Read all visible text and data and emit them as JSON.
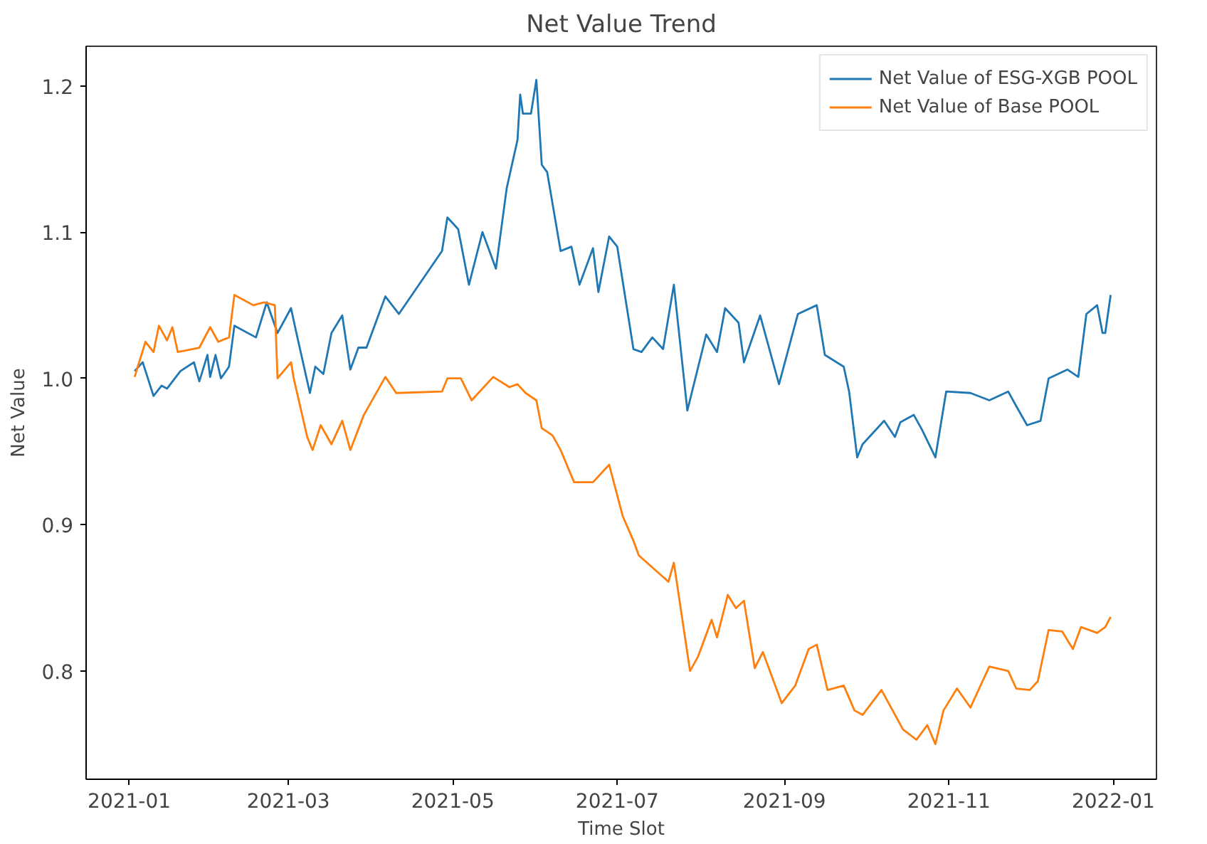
{
  "chart_data": {
    "type": "line",
    "title": "Net Value Trend",
    "xlabel": "Time Slot",
    "ylabel": "Net Value",
    "xlim": [
      "2020-12-16",
      "2022-01-17"
    ],
    "xticks": [
      "2021-01",
      "2021-03",
      "2021-05",
      "2021-07",
      "2021-09",
      "2021-11",
      "2022-01"
    ],
    "ylim": [
      0.726,
      1.227
    ],
    "yticks": [
      0.8,
      0.9,
      {
        "value": 1,
        "label": "1.0"
      },
      1.1,
      1.2
    ],
    "grid": false,
    "legend": "top right",
    "series": [
      {
        "name": "Net Value of ESG-XGB POOL",
        "color": "#1f77b4",
        "x": [
          "2021-01-03",
          "2021-01-06",
          "2021-01-10",
          "2021-01-13",
          "2021-01-15",
          "2021-01-20",
          "2021-01-25",
          "2021-01-27",
          "2021-01-30",
          "2021-01-31",
          "2021-02-02",
          "2021-02-04",
          "2021-02-07",
          "2021-02-09",
          "2021-02-17",
          "2021-02-21",
          "2021-02-25",
          "2021-03-02",
          "2021-03-04",
          "2021-03-09",
          "2021-03-11",
          "2021-03-14",
          "2021-03-17",
          "2021-03-21",
          "2021-03-24",
          "2021-03-27",
          "2021-03-30",
          "2021-04-06",
          "2021-04-11",
          "2021-04-27",
          "2021-04-29",
          "2021-05-03",
          "2021-05-07",
          "2021-05-12",
          "2021-05-17",
          "2021-05-21",
          "2021-05-25",
          "2021-05-26",
          "2021-05-27",
          "2021-05-30",
          "2021-06-01",
          "2021-06-03",
          "2021-06-05",
          "2021-06-10",
          "2021-06-14",
          "2021-06-17",
          "2021-06-22",
          "2021-06-24",
          "2021-06-28",
          "2021-07-01",
          "2021-07-07",
          "2021-07-10",
          "2021-07-14",
          "2021-07-18",
          "2021-07-22",
          "2021-07-27",
          "2021-08-03",
          "2021-08-07",
          "2021-08-10",
          "2021-08-15",
          "2021-08-17",
          "2021-08-23",
          "2021-08-30",
          "2021-09-06",
          "2021-09-13",
          "2021-09-16",
          "2021-09-23",
          "2021-09-25",
          "2021-09-28",
          "2021-09-30",
          "2021-10-08",
          "2021-10-12",
          "2021-10-14",
          "2021-10-19",
          "2021-10-22",
          "2021-10-27",
          "2021-10-31",
          "2021-11-09",
          "2021-11-16",
          "2021-11-23",
          "2021-11-26",
          "2021-11-30",
          "2021-12-05",
          "2021-12-08",
          "2021-12-15",
          "2021-12-19",
          "2021-12-22",
          "2021-12-26",
          "2021-12-28",
          "2021-12-29",
          "2021-12-31"
        ],
        "values": [
          1.005,
          1.011,
          0.988,
          0.995,
          0.993,
          1.005,
          1.011,
          0.998,
          1.016,
          1.001,
          1.016,
          1.0,
          1.008,
          1.036,
          1.028,
          1.052,
          1.031,
          1.048,
          1.031,
          0.99,
          1.008,
          1.003,
          1.031,
          1.043,
          1.006,
          1.021,
          1.021,
          1.056,
          1.044,
          1.087,
          1.11,
          1.102,
          1.064,
          1.1,
          1.075,
          1.13,
          1.163,
          1.194,
          1.181,
          1.181,
          1.204,
          1.146,
          1.141,
          1.087,
          1.09,
          1.064,
          1.089,
          1.059,
          1.097,
          1.09,
          1.02,
          1.018,
          1.028,
          1.02,
          1.064,
          0.978,
          1.03,
          1.018,
          1.048,
          1.038,
          1.011,
          1.043,
          0.996,
          1.044,
          1.05,
          1.016,
          1.008,
          0.991,
          0.946,
          0.955,
          0.971,
          0.96,
          0.97,
          0.975,
          0.965,
          0.946,
          0.991,
          0.99,
          0.985,
          0.991,
          0.981,
          0.968,
          0.971,
          1.0,
          1.006,
          1.001,
          1.044,
          1.05,
          1.031,
          1.031,
          1.057
        ]
      },
      {
        "name": "Net Value of Base POOL",
        "color": "#ff7f0e",
        "x": [
          "2021-01-03",
          "2021-01-07",
          "2021-01-10",
          "2021-01-12",
          "2021-01-15",
          "2021-01-17",
          "2021-01-19",
          "2021-01-27",
          "2021-01-31",
          "2021-02-03",
          "2021-02-07",
          "2021-02-09",
          "2021-02-16",
          "2021-02-20",
          "2021-02-24",
          "2021-02-25",
          "2021-03-02",
          "2021-03-03",
          "2021-03-08",
          "2021-03-10",
          "2021-03-13",
          "2021-03-17",
          "2021-03-21",
          "2021-03-24",
          "2021-03-29",
          "2021-04-02",
          "2021-04-06",
          "2021-04-10",
          "2021-04-27",
          "2021-04-29",
          "2021-05-04",
          "2021-05-08",
          "2021-05-16",
          "2021-05-22",
          "2021-05-25",
          "2021-05-28",
          "2021-06-01",
          "2021-06-03",
          "2021-06-07",
          "2021-06-10",
          "2021-06-15",
          "2021-06-22",
          "2021-06-28",
          "2021-07-03",
          "2021-07-07",
          "2021-07-09",
          "2021-07-20",
          "2021-07-22",
          "2021-07-28",
          "2021-07-31",
          "2021-08-05",
          "2021-08-07",
          "2021-08-11",
          "2021-08-14",
          "2021-08-17",
          "2021-08-21",
          "2021-08-24",
          "2021-08-31",
          "2021-09-05",
          "2021-09-10",
          "2021-09-13",
          "2021-09-17",
          "2021-09-23",
          "2021-09-27",
          "2021-09-30",
          "2021-10-07",
          "2021-10-15",
          "2021-10-20",
          "2021-10-24",
          "2021-10-27",
          "2021-10-30",
          "2021-11-04",
          "2021-11-09",
          "2021-11-16",
          "2021-11-23",
          "2021-11-26",
          "2021-12-01",
          "2021-12-04",
          "2021-12-08",
          "2021-12-13",
          "2021-12-17",
          "2021-12-20",
          "2021-12-26",
          "2021-12-29",
          "2021-12-31"
        ],
        "values": [
          1.001,
          1.025,
          1.018,
          1.036,
          1.026,
          1.035,
          1.018,
          1.021,
          1.035,
          1.025,
          1.028,
          1.057,
          1.05,
          1.052,
          1.05,
          1.0,
          1.011,
          1.0,
          0.96,
          0.951,
          0.968,
          0.955,
          0.971,
          0.951,
          0.975,
          0.988,
          1.001,
          0.99,
          0.991,
          1.0,
          1.0,
          0.985,
          1.001,
          0.994,
          0.996,
          0.99,
          0.985,
          0.966,
          0.961,
          0.951,
          0.929,
          0.929,
          0.941,
          0.906,
          0.889,
          0.879,
          0.861,
          0.874,
          0.8,
          0.81,
          0.835,
          0.823,
          0.852,
          0.843,
          0.848,
          0.802,
          0.813,
          0.778,
          0.79,
          0.815,
          0.818,
          0.787,
          0.79,
          0.773,
          0.77,
          0.787,
          0.76,
          0.753,
          0.763,
          0.75,
          0.773,
          0.788,
          0.775,
          0.803,
          0.8,
          0.788,
          0.787,
          0.793,
          0.828,
          0.827,
          0.815,
          0.83,
          0.826,
          0.83,
          0.837
        ]
      }
    ]
  }
}
